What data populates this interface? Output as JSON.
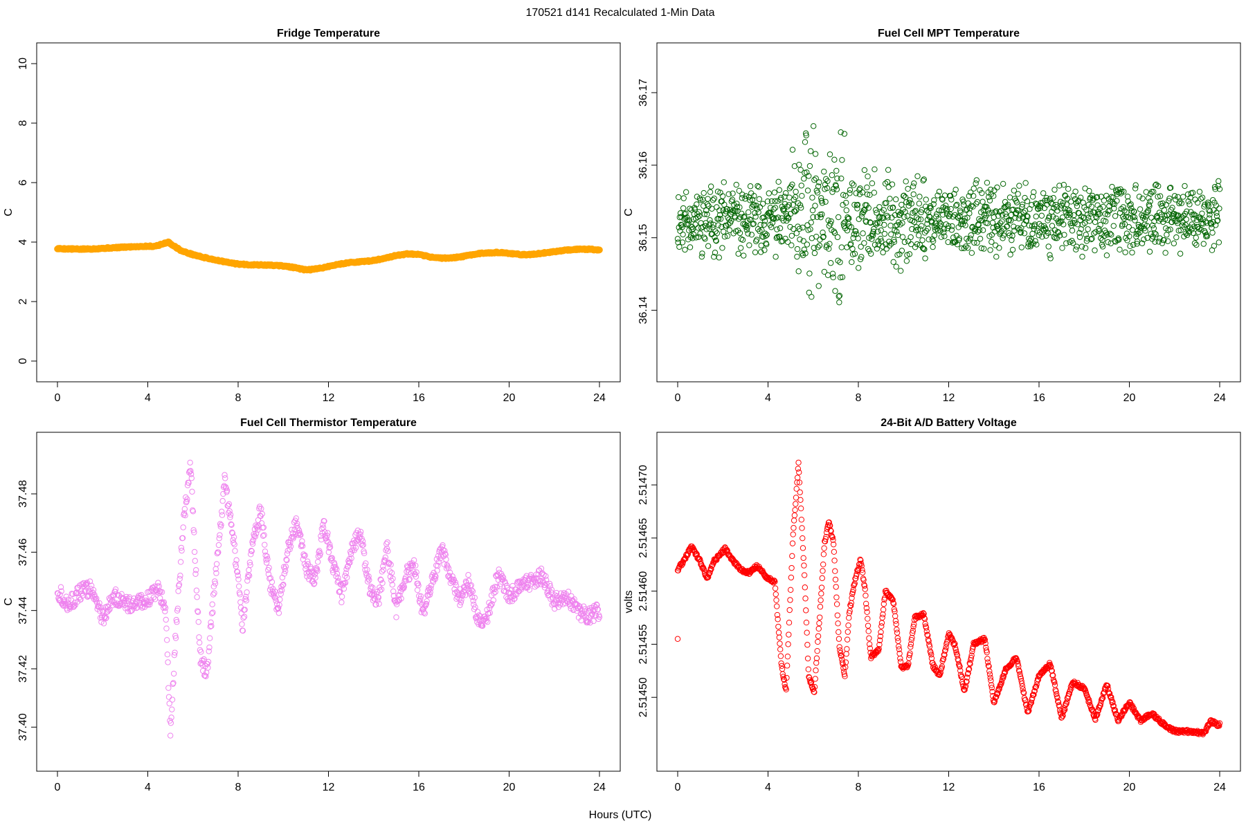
{
  "figure": {
    "title": "170521   d141   Recalculated 1-Min Data",
    "xlabel": "Hours (UTC)"
  },
  "chart_data": [
    {
      "id": "fridge",
      "type": "scatter",
      "title": "Fridge Temperature",
      "xlabel": "Hours (UTC)",
      "ylabel": "C",
      "color": "#FFA500",
      "marker": "filled-circle",
      "xlim": [
        0,
        24
      ],
      "ylim": [
        0,
        10
      ],
      "xticks": [
        0,
        4,
        8,
        12,
        16,
        20,
        24
      ],
      "yticks": [
        0,
        2,
        4,
        6,
        8,
        10
      ],
      "ytick_labels": [
        "0",
        "2",
        "4",
        "6",
        "8",
        "10"
      ],
      "series": [
        {
          "name": "Fridge Temperature",
          "x": [
            0,
            0.5,
            1,
            1.5,
            2,
            2.5,
            3,
            3.5,
            4,
            4.3,
            4.6,
            4.9,
            5.2,
            5.5,
            6,
            6.5,
            7,
            7.5,
            8,
            8.5,
            9,
            9.5,
            10,
            10.5,
            11,
            11.5,
            12,
            12.5,
            13,
            13.5,
            14,
            14.5,
            15,
            15.5,
            16,
            16.5,
            17,
            17.5,
            18,
            18.5,
            19,
            19.5,
            20,
            20.5,
            21,
            21.5,
            22,
            22.5,
            23,
            23.5,
            24
          ],
          "y": [
            3.78,
            3.77,
            3.76,
            3.77,
            3.79,
            3.81,
            3.83,
            3.85,
            3.86,
            3.86,
            3.92,
            4.0,
            3.85,
            3.7,
            3.58,
            3.48,
            3.4,
            3.32,
            3.26,
            3.24,
            3.23,
            3.22,
            3.2,
            3.14,
            3.06,
            3.1,
            3.18,
            3.26,
            3.32,
            3.34,
            3.38,
            3.46,
            3.55,
            3.6,
            3.58,
            3.5,
            3.46,
            3.47,
            3.52,
            3.6,
            3.64,
            3.65,
            3.62,
            3.58,
            3.58,
            3.63,
            3.68,
            3.73,
            3.76,
            3.76,
            3.74
          ]
        }
      ]
    },
    {
      "id": "mpt",
      "type": "scatter",
      "title": "Fuel Cell MPT Temperature",
      "xlabel": "Hours (UTC)",
      "ylabel": "C",
      "color": "#006400",
      "marker": "open-circle",
      "xlim": [
        0,
        24
      ],
      "ylim": [
        36.133,
        36.174
      ],
      "xticks": [
        0,
        4,
        8,
        12,
        16,
        20,
        24
      ],
      "yticks": [
        36.14,
        36.15,
        36.16,
        36.17
      ],
      "ytick_labels": [
        "36.14",
        "36.15",
        "36.16",
        "36.17"
      ],
      "noise": {
        "seed": 11,
        "baseline": 36.1525,
        "amplitude": 0.0055,
        "burst_hours": [
          5.0,
          7.4
        ],
        "burst_amplitude": 0.017
      }
    },
    {
      "id": "thermistor",
      "type": "scatter",
      "title": "Fuel Cell Thermistor Temperature",
      "xlabel": "Hours (UTC)",
      "ylabel": "C",
      "color": "#EE82EE",
      "marker": "open-circle",
      "xlim": [
        0,
        24
      ],
      "ylim": [
        37.392,
        37.494
      ],
      "xticks": [
        0,
        4,
        8,
        12,
        16,
        20,
        24
      ],
      "yticks": [
        37.4,
        37.42,
        37.44,
        37.46,
        37.48
      ],
      "ytick_labels": [
        "37.40",
        "37.42",
        "37.44",
        "37.46",
        "37.48"
      ],
      "series": [
        {
          "name": "Fuel Cell Thermistor Temperature",
          "x": [
            0,
            0.5,
            1,
            1.5,
            2,
            2.5,
            3,
            3.5,
            4,
            4.5,
            4.8,
            5.0,
            5.3,
            5.6,
            5.9,
            6.3,
            6.6,
            7.0,
            7.4,
            7.8,
            8.2,
            8.6,
            9.0,
            9.4,
            9.8,
            10.2,
            10.6,
            11.0,
            11.4,
            11.8,
            12.2,
            12.6,
            13.0,
            13.4,
            13.8,
            14.2,
            14.6,
            15.0,
            15.4,
            15.8,
            16.2,
            16.6,
            17.0,
            17.4,
            17.8,
            18.2,
            18.6,
            19.0,
            19.5,
            20,
            20.5,
            21,
            21.5,
            22,
            22.5,
            23,
            23.5,
            24
          ],
          "y": [
            37.447,
            37.442,
            37.446,
            37.448,
            37.437,
            37.445,
            37.442,
            37.443,
            37.444,
            37.447,
            37.44,
            37.398,
            37.44,
            37.472,
            37.49,
            37.425,
            37.418,
            37.452,
            37.484,
            37.465,
            37.434,
            37.46,
            37.475,
            37.45,
            37.44,
            37.462,
            37.47,
            37.455,
            37.45,
            37.47,
            37.456,
            37.445,
            37.46,
            37.467,
            37.448,
            37.443,
            37.462,
            37.44,
            37.452,
            37.455,
            37.438,
            37.45,
            37.461,
            37.452,
            37.444,
            37.45,
            37.438,
            37.437,
            37.452,
            37.445,
            37.448,
            37.45,
            37.452,
            37.443,
            37.445,
            37.44,
            37.438,
            37.44
          ]
        }
      ]
    },
    {
      "id": "battery",
      "type": "scatter",
      "title": "24-Bit A/D Battery Voltage",
      "xlabel": "Hours (UTC)",
      "ylabel": "volts",
      "color": "#FF0000",
      "marker": "open-circle",
      "xlim": [
        0,
        24
      ],
      "ylim": [
        2.51445,
        2.51473
      ],
      "xticks": [
        0,
        4,
        8,
        12,
        16,
        20,
        24
      ],
      "yticks": [
        2.5145,
        2.51455,
        2.5146,
        2.51465,
        2.5147
      ],
      "ytick_labels": [
        "2.51450",
        "2.51455",
        "2.51460",
        "2.51465",
        "2.51470"
      ],
      "outlier": {
        "x": 0.0,
        "y": 2.514555
      },
      "series": [
        {
          "name": "24-Bit A/D Battery Voltage",
          "x": [
            0,
            0.25,
            0.6,
            1.0,
            1.3,
            1.6,
            2.1,
            2.4,
            2.8,
            3.2,
            3.5,
            4.0,
            4.3,
            4.6,
            4.8,
            5.1,
            5.35,
            5.6,
            5.8,
            6.05,
            6.3,
            6.5,
            6.7,
            6.9,
            7.15,
            7.4,
            7.6,
            7.85,
            8.1,
            8.3,
            8.55,
            8.9,
            9.2,
            9.55,
            9.9,
            10.2,
            10.5,
            10.9,
            11.3,
            11.6,
            12.0,
            12.3,
            12.7,
            13.1,
            13.6,
            14.0,
            14.5,
            15.0,
            15.5,
            16.0,
            16.5,
            17.0,
            17.5,
            18.0,
            18.5,
            19.0,
            19.5,
            20.0,
            20.5,
            21.0,
            21.5,
            22.0,
            22.5,
            23.0,
            23.3,
            23.6,
            23.9
          ],
          "y": [
            2.51462,
            2.514628,
            2.514642,
            2.514628,
            2.514612,
            2.514628,
            2.51464,
            2.51463,
            2.51462,
            2.514617,
            2.514624,
            2.514612,
            2.514608,
            2.51453,
            2.514505,
            2.51465,
            2.51472,
            2.51462,
            2.51452,
            2.514505,
            2.51458,
            2.514645,
            2.514665,
            2.514645,
            2.51455,
            2.51452,
            2.51458,
            2.51461,
            2.51463,
            2.5146,
            2.514538,
            2.514545,
            2.5146,
            2.51459,
            2.514528,
            2.51453,
            2.514575,
            2.514578,
            2.51453,
            2.51452,
            2.51456,
            2.514548,
            2.514505,
            2.51455,
            2.514555,
            2.514495,
            2.514525,
            2.514538,
            2.514485,
            2.51452,
            2.514532,
            2.51448,
            2.514515,
            2.514508,
            2.51448,
            2.514512,
            2.514478,
            2.514495,
            2.514478,
            2.514485,
            2.514475,
            2.514468,
            2.514468,
            2.514467,
            2.514466,
            2.514478,
            2.514474
          ]
        }
      ]
    }
  ]
}
